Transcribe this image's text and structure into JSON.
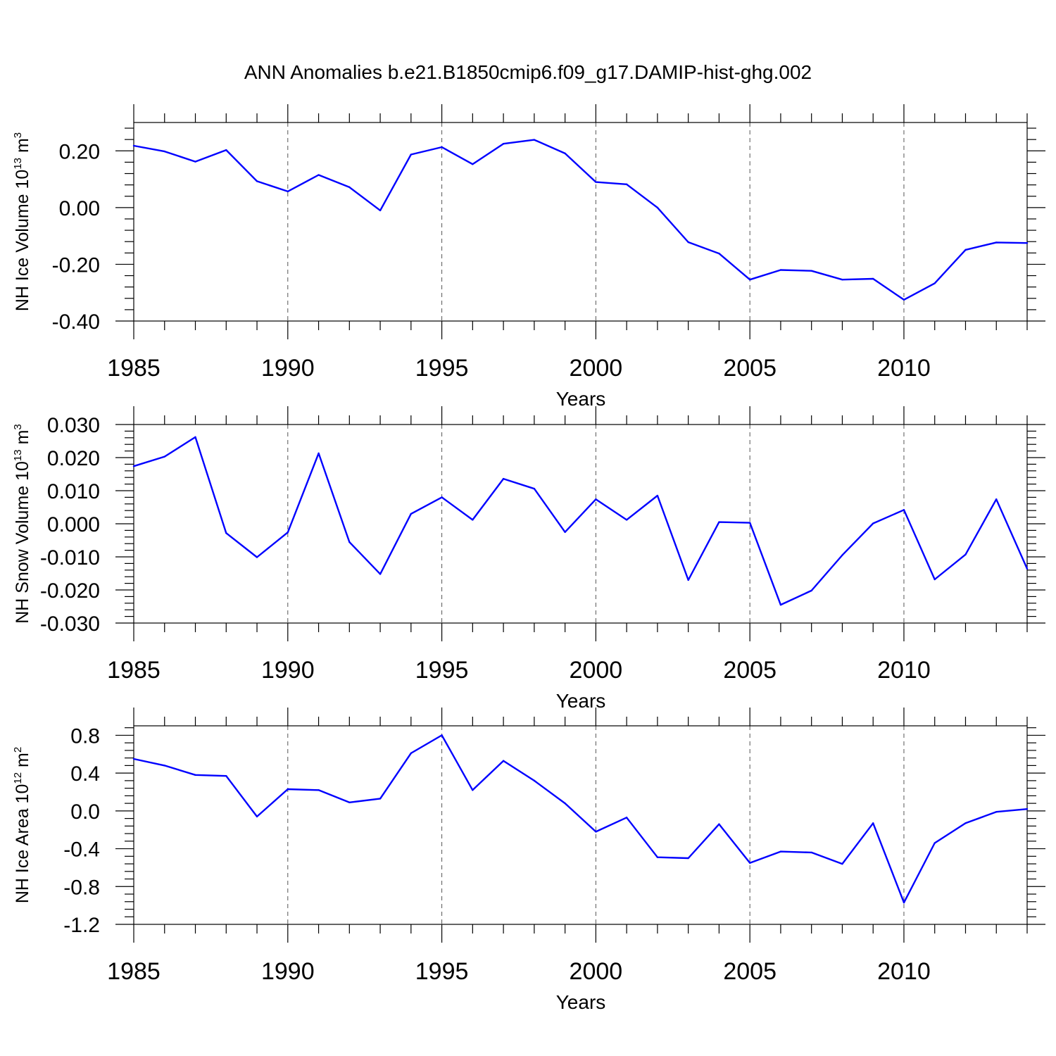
{
  "figure": {
    "title": "ANN Anomalies b.e21.B1850cmip6.f09_g17.DAMIP-hist-ghg.002",
    "line_color": "#0000ff"
  },
  "chart_data": [
    {
      "type": "line",
      "title": "",
      "xlabel": "Years",
      "ylabel_main": "NH Ice Volume 10",
      "ylabel_exp": "13",
      "ylabel_unit": " m",
      "ylabel_unit_exp": "3",
      "xlim": [
        1985,
        2014
      ],
      "ylim": [
        -0.4,
        0.3
      ],
      "x_ticks": [
        1985,
        1990,
        1995,
        2000,
        2005,
        2010
      ],
      "y_ticks": [
        -0.4,
        -0.2,
        0.0,
        0.2
      ],
      "y_tick_labels": [
        "-0.40",
        "-0.20",
        "0.00",
        "0.20"
      ],
      "x": [
        1985,
        1986,
        1987,
        1988,
        1989,
        1990,
        1991,
        1992,
        1993,
        1994,
        1995,
        1996,
        1997,
        1998,
        1999,
        2000,
        2001,
        2002,
        2003,
        2004,
        2005,
        2006,
        2007,
        2008,
        2009,
        2010,
        2011,
        2012,
        2013,
        2014
      ],
      "values": [
        0.218,
        0.198,
        0.162,
        0.203,
        0.093,
        0.057,
        0.115,
        0.072,
        -0.01,
        0.187,
        0.213,
        0.153,
        0.225,
        0.239,
        0.191,
        0.09,
        0.082,
        0.0,
        -0.122,
        -0.162,
        -0.254,
        -0.22,
        -0.223,
        -0.254,
        -0.251,
        -0.325,
        -0.267,
        -0.149,
        -0.123,
        -0.125
      ]
    },
    {
      "type": "line",
      "title": "",
      "xlabel": "Years",
      "ylabel_main": "NH Snow Volume 10",
      "ylabel_exp": "13",
      "ylabel_unit": " m",
      "ylabel_unit_exp": "3",
      "xlim": [
        1985,
        2014
      ],
      "ylim": [
        -0.03,
        0.03
      ],
      "x_ticks": [
        1985,
        1990,
        1995,
        2000,
        2005,
        2010
      ],
      "y_ticks": [
        -0.03,
        -0.02,
        -0.01,
        0.0,
        0.01,
        0.02,
        0.03
      ],
      "y_tick_labels": [
        "-0.030",
        "-0.020",
        "-0.010",
        "0.000",
        "0.010",
        "0.020",
        "0.030"
      ],
      "x": [
        1985,
        1986,
        1987,
        1988,
        1989,
        1990,
        1991,
        1992,
        1993,
        1994,
        1995,
        1996,
        1997,
        1998,
        1999,
        2000,
        2001,
        2002,
        2003,
        2004,
        2005,
        2006,
        2007,
        2008,
        2009,
        2010,
        2011,
        2012,
        2013,
        2014
      ],
      "values": [
        0.0174,
        0.0203,
        0.0262,
        -0.0028,
        -0.0101,
        -0.0026,
        0.0213,
        -0.0055,
        -0.0152,
        0.003,
        0.008,
        0.0012,
        0.0136,
        0.0106,
        -0.0025,
        0.0074,
        0.0012,
        0.0085,
        -0.017,
        0.0005,
        0.0003,
        -0.0245,
        -0.0202,
        -0.0095,
        0.0001,
        0.0042,
        -0.0168,
        -0.0093,
        0.0074,
        -0.0136
      ]
    },
    {
      "type": "line",
      "title": "",
      "xlabel": "Years",
      "ylabel_main": "NH Ice Area 10",
      "ylabel_exp": "12",
      "ylabel_unit": " m",
      "ylabel_unit_exp": "2",
      "xlim": [
        1985,
        2014
      ],
      "ylim": [
        -1.2,
        0.9
      ],
      "x_ticks": [
        1985,
        1990,
        1995,
        2000,
        2005,
        2010
      ],
      "y_ticks": [
        -1.2,
        -0.8,
        -0.4,
        0.0,
        0.4,
        0.8
      ],
      "y_tick_labels": [
        "-1.2",
        "-0.8",
        "-0.4",
        "0.0",
        "0.4",
        "0.8"
      ],
      "x": [
        1985,
        1986,
        1987,
        1988,
        1989,
        1990,
        1991,
        1992,
        1993,
        1994,
        1995,
        1996,
        1997,
        1998,
        1999,
        2000,
        2001,
        2002,
        2003,
        2004,
        2005,
        2006,
        2007,
        2008,
        2009,
        2010,
        2011,
        2012,
        2013,
        2014
      ],
      "values": [
        0.55,
        0.48,
        0.38,
        0.37,
        -0.06,
        0.23,
        0.22,
        0.09,
        0.13,
        0.61,
        0.8,
        0.22,
        0.53,
        0.32,
        0.08,
        -0.22,
        -0.07,
        -0.49,
        -0.5,
        -0.14,
        -0.55,
        -0.43,
        -0.44,
        -0.56,
        -0.13,
        -0.97,
        -0.34,
        -0.13,
        -0.01,
        0.02
      ]
    }
  ]
}
